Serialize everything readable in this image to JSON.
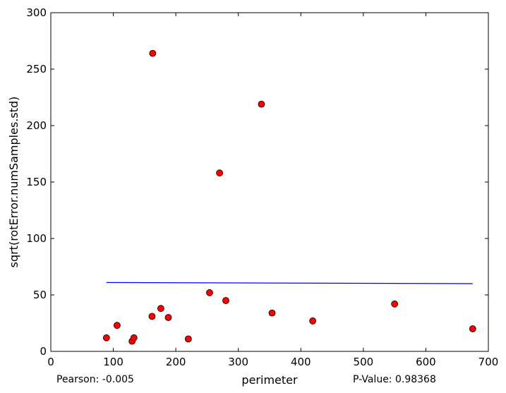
{
  "chart_data": {
    "type": "scatter",
    "title": "",
    "xlabel": "perimeter",
    "ylabel": "sqrt(rotError.numSamples.std)",
    "xlim": [
      0,
      700
    ],
    "ylim": [
      0,
      300
    ],
    "xticks": [
      0,
      100,
      200,
      300,
      400,
      500,
      600,
      700
    ],
    "yticks": [
      0,
      50,
      100,
      150,
      200,
      250,
      300
    ],
    "grid": false,
    "point_color": "#ff0000",
    "line_color": "#0000ff",
    "points": [
      {
        "x": 89,
        "y": 12
      },
      {
        "x": 106,
        "y": 23
      },
      {
        "x": 130,
        "y": 9
      },
      {
        "x": 133,
        "y": 12
      },
      {
        "x": 162,
        "y": 31
      },
      {
        "x": 163,
        "y": 264
      },
      {
        "x": 176,
        "y": 38
      },
      {
        "x": 188,
        "y": 30
      },
      {
        "x": 220,
        "y": 11
      },
      {
        "x": 254,
        "y": 52
      },
      {
        "x": 270,
        "y": 158
      },
      {
        "x": 280,
        "y": 45
      },
      {
        "x": 337,
        "y": 219
      },
      {
        "x": 354,
        "y": 34
      },
      {
        "x": 419,
        "y": 27
      },
      {
        "x": 550,
        "y": 42
      },
      {
        "x": 675,
        "y": 20
      }
    ],
    "fit_line": {
      "x": [
        89,
        675
      ],
      "y": [
        61,
        60
      ]
    },
    "pearson_text": "Pearson: -0.005",
    "pvalue_text": "P-Value: 0.98368"
  }
}
